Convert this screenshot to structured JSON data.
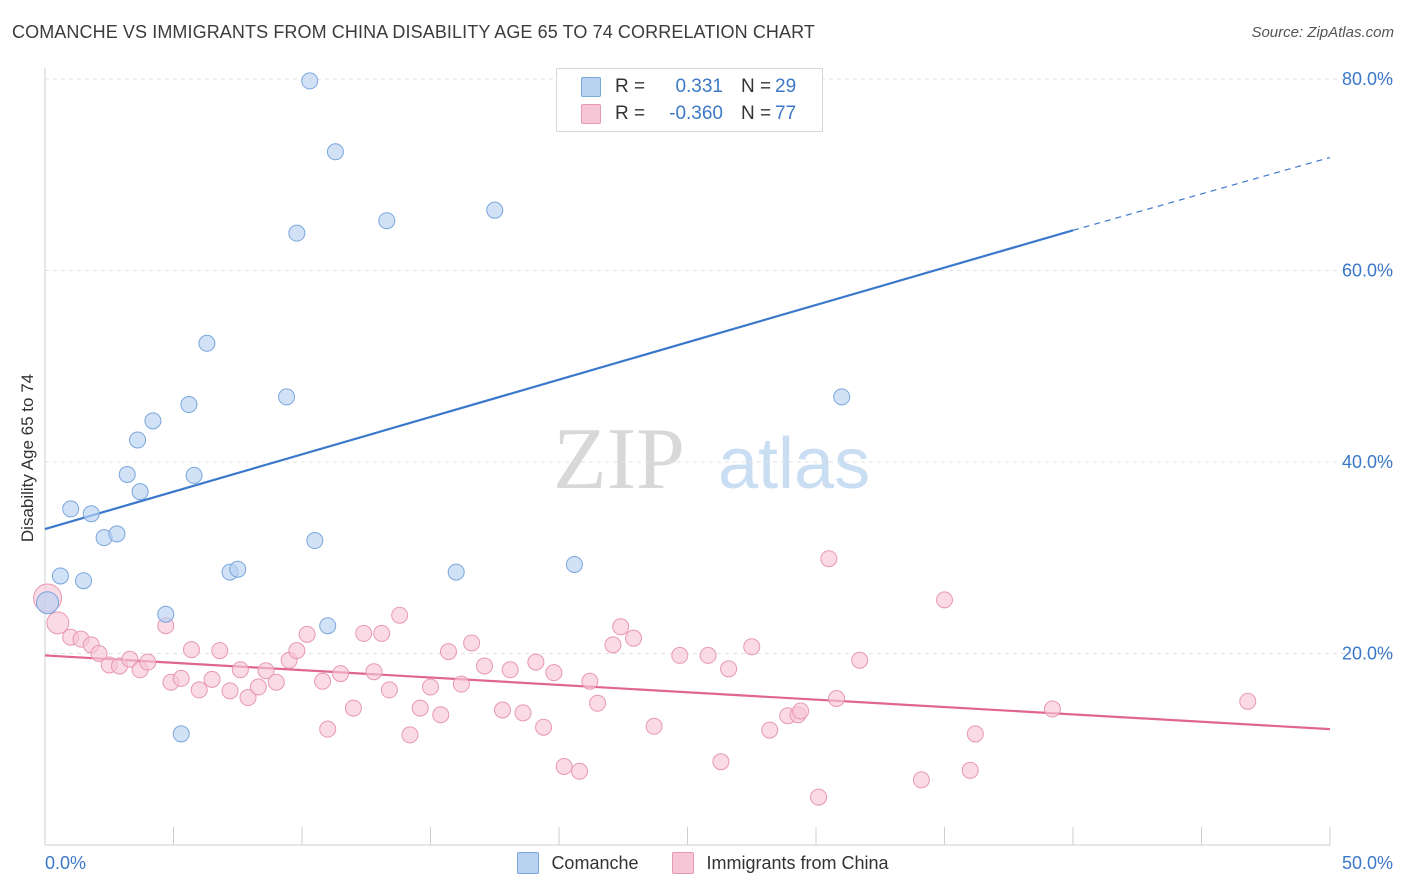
{
  "title": "COMANCHE VS IMMIGRANTS FROM CHINA DISABILITY AGE 65 TO 74 CORRELATION CHART",
  "source": "Source: ZipAtlas.com",
  "watermark": {
    "zip": "ZIP",
    "atlas": "atlas"
  },
  "legend_top": {
    "rows": [
      {
        "r_label": "R =",
        "r_value": "0.331",
        "n_label": "N =",
        "n_value": "29"
      },
      {
        "r_label": "R =",
        "r_value": "-0.360",
        "n_label": "N =",
        "n_value": "77"
      }
    ]
  },
  "legend_bottom": {
    "items": [
      "Comanche",
      "Immigrants from China"
    ]
  },
  "colors": {
    "comanche_fill": "#b8d2f2",
    "comanche_stroke": "#7aa6dc",
    "comanche_line": "#3a78cc",
    "china_fill": "#f7c6d6",
    "china_stroke": "#e898b2",
    "china_line": "#e06690",
    "tick_label": "#3c78c8",
    "grid": "#e2e2e2"
  },
  "chart_data": {
    "type": "scatter",
    "title": "COMANCHE VS IMMIGRANTS FROM CHINA DISABILITY AGE 65 TO 74 CORRELATION CHART",
    "xlabel": "",
    "ylabel": "Disability Age 65 to 74",
    "xlim": [
      0,
      50
    ],
    "ylim": [
      0,
      80
    ],
    "x_tick_labels": [
      "0.0%",
      "50.0%"
    ],
    "y_ticks": [
      20,
      40,
      60,
      80
    ],
    "y_tick_labels": [
      "20.0%",
      "40.0%",
      "60.0%",
      "80.0%"
    ],
    "grid": "horizontal dashed",
    "legend": "top-center and bottom",
    "series": [
      {
        "name": "Comanche",
        "R": 0.331,
        "N": 29,
        "trend": {
          "x0": 0,
          "y0": 33.0,
          "x1": 40,
          "y1": 64.2,
          "dashed_to_x": 50,
          "dashed_y1": 71.8
        },
        "points": [
          [
            0.1,
            25.3
          ],
          [
            0.6,
            28.1
          ],
          [
            1.0,
            35.1
          ],
          [
            1.5,
            27.6
          ],
          [
            1.8,
            34.6
          ],
          [
            2.3,
            32.1
          ],
          [
            2.8,
            32.5
          ],
          [
            3.2,
            38.7
          ],
          [
            3.6,
            42.3
          ],
          [
            3.7,
            36.9
          ],
          [
            4.2,
            44.3
          ],
          [
            4.7,
            24.1
          ],
          [
            5.3,
            11.6
          ],
          [
            5.6,
            46.0
          ],
          [
            5.8,
            38.6
          ],
          [
            6.3,
            52.4
          ],
          [
            7.2,
            28.5
          ],
          [
            7.5,
            28.8
          ],
          [
            9.4,
            46.8
          ],
          [
            9.8,
            63.9
          ],
          [
            10.3,
            79.8
          ],
          [
            10.5,
            31.8
          ],
          [
            11.0,
            22.9
          ],
          [
            11.3,
            72.4
          ],
          [
            13.3,
            65.2
          ],
          [
            16.0,
            28.5
          ],
          [
            17.5,
            66.3
          ],
          [
            20.6,
            29.3
          ],
          [
            31.0,
            46.8
          ]
        ]
      },
      {
        "name": "Immigrants from China",
        "R": -0.36,
        "N": 77,
        "trend": {
          "x0": 0,
          "y0": 19.8,
          "x1": 50,
          "y1": 12.1
        },
        "points": [
          [
            0.1,
            25.8
          ],
          [
            0.5,
            23.2
          ],
          [
            1.0,
            21.7
          ],
          [
            1.4,
            21.5
          ],
          [
            1.8,
            20.9
          ],
          [
            2.1,
            20.0
          ],
          [
            2.5,
            18.8
          ],
          [
            2.9,
            18.7
          ],
          [
            3.3,
            19.4
          ],
          [
            3.7,
            18.3
          ],
          [
            4.0,
            19.1
          ],
          [
            4.7,
            22.9
          ],
          [
            4.9,
            17.0
          ],
          [
            5.3,
            17.4
          ],
          [
            5.7,
            20.4
          ],
          [
            6.0,
            16.2
          ],
          [
            6.5,
            17.3
          ],
          [
            6.8,
            20.3
          ],
          [
            7.2,
            16.1
          ],
          [
            7.6,
            18.3
          ],
          [
            7.9,
            15.4
          ],
          [
            8.3,
            16.5
          ],
          [
            8.6,
            18.2
          ],
          [
            9.0,
            17.0
          ],
          [
            9.5,
            19.3
          ],
          [
            9.8,
            20.3
          ],
          [
            10.2,
            22.0
          ],
          [
            10.8,
            17.1
          ],
          [
            11.0,
            12.1
          ],
          [
            11.5,
            17.9
          ],
          [
            12.0,
            14.3
          ],
          [
            12.4,
            22.1
          ],
          [
            12.8,
            18.1
          ],
          [
            13.1,
            22.1
          ],
          [
            13.4,
            16.2
          ],
          [
            13.8,
            24.0
          ],
          [
            14.2,
            11.5
          ],
          [
            14.6,
            14.3
          ],
          [
            15.0,
            16.5
          ],
          [
            15.4,
            13.6
          ],
          [
            15.7,
            20.2
          ],
          [
            16.2,
            16.8
          ],
          [
            16.6,
            21.1
          ],
          [
            17.1,
            18.7
          ],
          [
            17.8,
            14.1
          ],
          [
            18.1,
            18.3
          ],
          [
            18.6,
            13.8
          ],
          [
            19.1,
            19.1
          ],
          [
            19.4,
            12.3
          ],
          [
            19.8,
            18.0
          ],
          [
            20.2,
            8.2
          ],
          [
            20.8,
            7.7
          ],
          [
            21.2,
            17.1
          ],
          [
            21.5,
            14.8
          ],
          [
            22.1,
            20.9
          ],
          [
            22.4,
            22.8
          ],
          [
            22.9,
            21.6
          ],
          [
            23.7,
            12.4
          ],
          [
            24.7,
            19.8
          ],
          [
            25.8,
            19.8
          ],
          [
            26.3,
            8.7
          ],
          [
            26.6,
            18.4
          ],
          [
            27.5,
            20.7
          ],
          [
            28.2,
            12.0
          ],
          [
            28.9,
            13.5
          ],
          [
            29.3,
            13.6
          ],
          [
            30.1,
            5.0
          ],
          [
            30.5,
            29.9
          ],
          [
            30.8,
            15.3
          ],
          [
            31.7,
            19.3
          ],
          [
            34.1,
            6.8
          ],
          [
            35.0,
            25.6
          ],
          [
            36.0,
            7.8
          ],
          [
            36.2,
            11.6
          ],
          [
            39.2,
            14.2
          ],
          [
            46.8,
            15.0
          ],
          [
            29.4,
            14.0
          ]
        ]
      }
    ]
  }
}
